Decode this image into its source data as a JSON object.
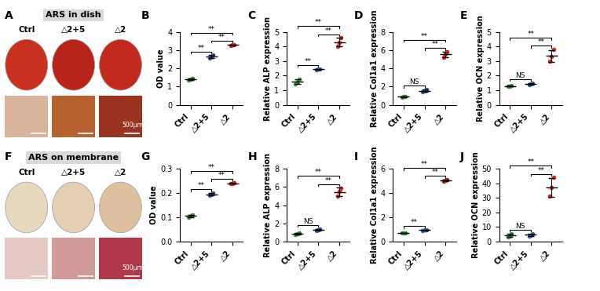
{
  "image_panels": [
    {
      "panel": "A",
      "title": "ARS in dish",
      "labels": [
        "Ctrl",
        "△2+5",
        "△2"
      ],
      "scale_bar": "500μm"
    },
    {
      "panel": "F",
      "title": "ARS on membrane",
      "labels": [
        "Ctrl",
        "△2+5",
        "△2"
      ],
      "scale_bar": "500μm"
    }
  ],
  "chart_data": [
    {
      "type": "scatter",
      "panel": "B",
      "y_label": "OD value",
      "categories": [
        "Ctrl",
        "△2+5",
        "△2"
      ],
      "values": [
        [
          1.38,
          1.42,
          1.45
        ],
        [
          2.58,
          2.65,
          2.72
        ],
        [
          3.28,
          3.3,
          3.32
        ]
      ],
      "errors": [
        0.04,
        0.07,
        0.02
      ],
      "colors": [
        "#3a9a3a",
        "#3b6fb5",
        "#d62728"
      ],
      "ylim": [
        0,
        4
      ],
      "yticks": [
        0,
        1,
        2,
        3,
        4
      ],
      "annotations": [
        {
          "pair": [
            0,
            1
          ],
          "text": "**"
        },
        {
          "pair": [
            1,
            2
          ],
          "text": "**"
        },
        {
          "pair": [
            0,
            2
          ],
          "text": "**"
        }
      ]
    },
    {
      "type": "scatter",
      "panel": "C",
      "y_label": "Relative ALP expression",
      "categories": [
        "Ctrl",
        "△2+5",
        "△2"
      ],
      "values": [
        [
          1.45,
          1.6,
          1.75
        ],
        [
          2.42,
          2.45,
          2.48
        ],
        [
          4.0,
          4.3,
          4.6
        ]
      ],
      "errors": [
        0.15,
        0.03,
        0.3
      ],
      "colors": [
        "#3a9a3a",
        "#3b6fb5",
        "#d62728"
      ],
      "ylim": [
        0,
        5
      ],
      "yticks": [
        0,
        1,
        2,
        3,
        4,
        5
      ],
      "annotations": [
        {
          "pair": [
            0,
            1
          ],
          "text": "**"
        },
        {
          "pair": [
            1,
            2
          ],
          "text": "**"
        },
        {
          "pair": [
            0,
            2
          ],
          "text": "**"
        }
      ]
    },
    {
      "type": "scatter",
      "panel": "D",
      "y_label": "Relative Col1a1 expression",
      "categories": [
        "Ctrl",
        "△2+5",
        "△2"
      ],
      "values": [
        [
          0.85,
          0.9,
          0.95
        ],
        [
          1.4,
          1.55,
          1.7
        ],
        [
          5.2,
          5.6,
          5.8
        ]
      ],
      "errors": [
        0.05,
        0.15,
        0.3
      ],
      "colors": [
        "#3a9a3a",
        "#3b6fb5",
        "#d62728"
      ],
      "ylim": [
        0,
        8
      ],
      "yticks": [
        0,
        2,
        4,
        6,
        8
      ],
      "annotations": [
        {
          "pair": [
            0,
            1
          ],
          "text": "NS"
        },
        {
          "pair": [
            1,
            2
          ],
          "text": "**"
        },
        {
          "pair": [
            0,
            2
          ],
          "text": "**"
        }
      ]
    },
    {
      "type": "scatter",
      "panel": "E",
      "y_label": "Relative OCN expression",
      "categories": [
        "Ctrl",
        "△2+5",
        "△2"
      ],
      "values": [
        [
          1.25,
          1.28,
          1.3
        ],
        [
          1.4,
          1.45,
          1.5
        ],
        [
          3.0,
          3.3,
          3.8
        ]
      ],
      "errors": [
        0.03,
        0.05,
        0.4
      ],
      "colors": [
        "#3a9a3a",
        "#3b6fb5",
        "#d62728"
      ],
      "ylim": [
        0,
        5
      ],
      "yticks": [
        0,
        1,
        2,
        3,
        4,
        5
      ],
      "annotations": [
        {
          "pair": [
            0,
            1
          ],
          "text": "NS"
        },
        {
          "pair": [
            1,
            2
          ],
          "text": "**"
        },
        {
          "pair": [
            0,
            2
          ],
          "text": "**"
        }
      ]
    },
    {
      "type": "scatter",
      "panel": "G",
      "y_label": "OD value",
      "categories": [
        "Ctrl",
        "△2+5",
        "△2"
      ],
      "values": [
        [
          0.1,
          0.105,
          0.11
        ],
        [
          0.19,
          0.195,
          0.2
        ],
        [
          0.238,
          0.24,
          0.242
        ]
      ],
      "errors": [
        0.005,
        0.005,
        0.002
      ],
      "colors": [
        "#3a9a3a",
        "#3b6fb5",
        "#d62728"
      ],
      "ylim": [
        0.0,
        0.3
      ],
      "yticks": [
        0.0,
        0.1,
        0.2,
        0.3
      ],
      "annotations": [
        {
          "pair": [
            0,
            1
          ],
          "text": "**"
        },
        {
          "pair": [
            1,
            2
          ],
          "text": "**"
        },
        {
          "pair": [
            0,
            2
          ],
          "text": "**"
        }
      ]
    },
    {
      "type": "scatter",
      "panel": "H",
      "y_label": "Relative ALP expression",
      "categories": [
        "Ctrl",
        "△2+5",
        "△2"
      ],
      "values": [
        [
          0.8,
          0.85,
          0.9
        ],
        [
          1.2,
          1.3,
          1.4
        ],
        [
          5.0,
          5.5,
          5.9
        ]
      ],
      "errors": [
        0.05,
        0.1,
        0.45
      ],
      "colors": [
        "#3a9a3a",
        "#3b6fb5",
        "#d62728"
      ],
      "ylim": [
        0,
        8
      ],
      "yticks": [
        0,
        2,
        4,
        6,
        8
      ],
      "annotations": [
        {
          "pair": [
            0,
            1
          ],
          "text": "NS"
        },
        {
          "pair": [
            1,
            2
          ],
          "text": "**"
        },
        {
          "pair": [
            0,
            2
          ],
          "text": "**"
        }
      ]
    },
    {
      "type": "scatter",
      "panel": "I",
      "y_label": "Relative Col1a1 expression",
      "categories": [
        "Ctrl",
        "△2+5",
        "△2"
      ],
      "values": [
        [
          0.68,
          0.7,
          0.72
        ],
        [
          0.93,
          0.95,
          0.97
        ],
        [
          5.0,
          5.05,
          5.1
        ]
      ],
      "errors": [
        0.02,
        0.02,
        0.05
      ],
      "colors": [
        "#3a9a3a",
        "#3b6fb5",
        "#d62728"
      ],
      "ylim": [
        0,
        6
      ],
      "yticks": [
        0,
        2,
        4,
        6
      ],
      "annotations": [
        {
          "pair": [
            0,
            1
          ],
          "text": "**"
        },
        {
          "pair": [
            1,
            2
          ],
          "text": "**"
        },
        {
          "pair": [
            0,
            2
          ],
          "text": "**"
        }
      ]
    },
    {
      "type": "scatter",
      "panel": "J",
      "y_label": "Relative OCN expression",
      "categories": [
        "Ctrl",
        "△2+5",
        "△2"
      ],
      "values": [
        [
          3.0,
          4.0,
          5.5
        ],
        [
          3.8,
          4.5,
          5.5
        ],
        [
          31,
          37,
          44
        ]
      ],
      "errors": [
        1.2,
        0.9,
        6.5
      ],
      "colors": [
        "#3a9a3a",
        "#3b6fb5",
        "#d62728"
      ],
      "ylim": [
        0,
        50
      ],
      "yticks": [
        0,
        10,
        20,
        30,
        40,
        50
      ],
      "annotations": [
        {
          "pair": [
            0,
            1
          ],
          "text": "NS"
        },
        {
          "pair": [
            1,
            2
          ],
          "text": "**"
        },
        {
          "pair": [
            0,
            2
          ],
          "text": "**"
        }
      ]
    }
  ]
}
